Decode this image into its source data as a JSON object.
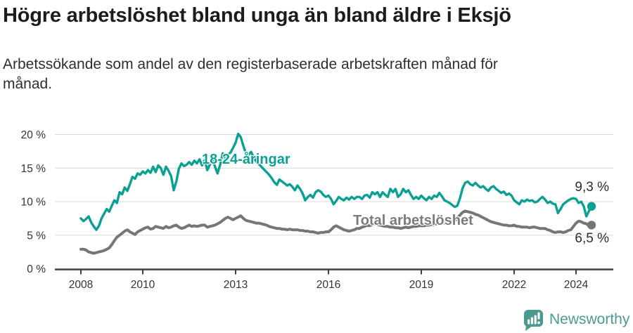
{
  "header": {
    "title": "Högre arbetslöshet bland unga än bland äldre i Eksjö",
    "subtitle_line1": "Arbetssökande som andel av den registerbaserade arbetskraften månad för",
    "subtitle_line2": "månad."
  },
  "colors": {
    "youth": "#0ba093",
    "total": "#767676",
    "total_label": "#7b7b7b",
    "axis": "#3f3f3f",
    "grid": "#d9d9d9",
    "tick_text": "#333333",
    "value_text": "#2c2c2c",
    "brand": "#4b9a91"
  },
  "footer": {
    "brand": "Newsworthy"
  },
  "chart_data": {
    "type": "line",
    "title": "Högre arbetslöshet bland unga än bland äldre i Eksjö",
    "subtitle": "Arbetssökande som andel av den registerbaserade arbetskraften månad för månad.",
    "xlabel": "",
    "ylabel": "",
    "unit": "%",
    "x_start": "2008-01",
    "x_end": "2024-07",
    "points_per_year": 12,
    "ylim": [
      0,
      20
    ],
    "grid": true,
    "legend_position": "inline-labels",
    "y_ticks": [
      {
        "value": 0,
        "label": "0 %"
      },
      {
        "value": 5,
        "label": "5 %"
      },
      {
        "value": 10,
        "label": "10 %"
      },
      {
        "value": 15,
        "label": "15 %"
      },
      {
        "value": 20,
        "label": "20 %"
      }
    ],
    "x_ticks": [
      {
        "year": 2008,
        "label": "2008"
      },
      {
        "year": 2010,
        "label": "2010"
      },
      {
        "year": 2013,
        "label": "2013"
      },
      {
        "year": 2016,
        "label": "2016"
      },
      {
        "year": 2019,
        "label": "2019"
      },
      {
        "year": 2022,
        "label": "2022"
      },
      {
        "year": 2024,
        "label": "2024"
      }
    ],
    "series": [
      {
        "name": "18-24-åringar",
        "color": "#0ba093",
        "end_value": 9.3,
        "end_label": "9,3 %",
        "values": [
          7.5,
          7.1,
          7.4,
          7.8,
          6.9,
          6.3,
          5.8,
          6.4,
          7.5,
          8.2,
          8.9,
          8.5,
          9.4,
          10.2,
          9.8,
          11.4,
          11.1,
          12.1,
          11.6,
          12.6,
          13.7,
          13.4,
          14.2,
          14.0,
          14.5,
          14.2,
          14.7,
          14.3,
          15.2,
          14.4,
          15.4,
          15.0,
          14.0,
          15.2,
          14.6,
          13.8,
          11.7,
          13.0,
          14.9,
          15.7,
          15.3,
          15.5,
          15.9,
          15.5,
          16.1,
          15.7,
          16.3,
          15.4,
          16.2,
          14.7,
          15.5,
          16.5,
          15.2,
          14.2,
          15.5,
          17.2,
          16.5,
          17.0,
          17.3,
          18.0,
          18.8,
          20.1,
          19.6,
          18.3,
          17.2,
          17.0,
          17.4,
          16.6,
          16.0,
          15.6,
          15.2,
          14.8,
          14.4,
          14.0,
          13.5,
          12.9,
          12.5,
          13.3,
          13.0,
          12.7,
          12.4,
          12.6,
          12.2,
          11.7,
          12.4,
          11.9,
          11.2,
          10.2,
          10.7,
          11.0,
          10.6,
          11.4,
          11.7,
          11.5,
          11.0,
          10.7,
          10.9,
          10.4,
          9.6,
          10.1,
          10.7,
          10.4,
          10.2,
          10.6,
          10.3,
          10.7,
          10.4,
          10.7,
          10.7,
          10.4,
          10.9,
          11.0,
          10.6,
          11.4,
          11.1,
          11.4,
          10.7,
          11.4,
          11.0,
          10.7,
          11.9,
          11.4,
          11.9,
          10.7,
          11.1,
          11.9,
          11.4,
          11.7,
          11.0,
          10.4,
          10.7,
          10.4,
          10.9,
          10.5,
          10.2,
          10.7,
          10.4,
          10.9,
          10.7,
          11.3,
          10.8,
          10.2,
          10.0,
          9.8,
          9.5,
          9.2,
          9.4,
          10.5,
          12.0,
          12.8,
          13.0,
          12.6,
          12.4,
          12.8,
          12.4,
          12.1,
          12.3,
          11.9,
          11.6,
          12.1,
          12.3,
          11.9,
          11.6,
          11.3,
          11.5,
          11.0,
          11.2,
          10.9,
          10.2,
          9.9,
          9.6,
          10.2,
          10.0,
          10.3,
          10.1,
          10.2,
          9.9,
          10.0,
          10.4,
          10.7,
          10.3,
          9.8,
          10.0,
          9.7,
          9.6,
          8.3,
          8.9,
          9.6,
          9.9,
          10.2,
          10.4,
          10.5,
          10.4,
          9.8,
          10.0,
          9.3,
          7.8,
          8.6,
          9.3
        ]
      },
      {
        "name": "Total arbetslöshet",
        "color": "#767676",
        "end_value": 6.5,
        "end_label": "6,5 %",
        "values": [
          2.9,
          2.9,
          2.8,
          2.5,
          2.4,
          2.3,
          2.4,
          2.5,
          2.6,
          2.7,
          2.9,
          3.1,
          3.6,
          4.2,
          4.7,
          5.0,
          5.3,
          5.6,
          5.8,
          5.5,
          5.3,
          5.1,
          5.5,
          5.7,
          5.9,
          6.1,
          6.2,
          5.9,
          6.0,
          6.3,
          6.2,
          6.1,
          6.0,
          6.3,
          6.1,
          6.2,
          6.4,
          6.5,
          6.2,
          6.0,
          6.1,
          6.3,
          6.5,
          6.3,
          6.4,
          6.3,
          6.4,
          6.5,
          6.5,
          6.2,
          6.3,
          6.4,
          6.5,
          6.7,
          6.9,
          7.2,
          7.5,
          7.7,
          7.5,
          7.3,
          7.5,
          7.7,
          7.9,
          7.5,
          7.2,
          7.1,
          7.0,
          6.9,
          6.8,
          6.8,
          6.7,
          6.6,
          6.5,
          6.3,
          6.2,
          6.1,
          6.0,
          6.0,
          5.9,
          5.9,
          5.8,
          5.9,
          5.8,
          5.8,
          5.8,
          5.7,
          5.7,
          5.6,
          5.6,
          5.5,
          5.5,
          5.4,
          5.3,
          5.4,
          5.4,
          5.5,
          5.5,
          5.8,
          6.2,
          6.4,
          6.2,
          6.0,
          5.8,
          5.7,
          5.6,
          5.7,
          5.8,
          6.0,
          6.0,
          6.2,
          6.3,
          6.5,
          6.4,
          6.6,
          6.7,
          6.6,
          6.5,
          6.4,
          6.3,
          6.3,
          6.2,
          6.2,
          6.1,
          6.1,
          6.0,
          6.1,
          6.2,
          6.1,
          6.2,
          6.3,
          6.3,
          6.4,
          6.4,
          6.4,
          6.5,
          6.5,
          6.6,
          6.6,
          6.7,
          6.7,
          6.8,
          6.8,
          6.9,
          7.0,
          7.0,
          7.2,
          7.5,
          8.0,
          8.4,
          8.6,
          8.5,
          8.4,
          8.3,
          8.1,
          8.0,
          7.8,
          7.6,
          7.4,
          7.2,
          7.0,
          6.9,
          6.8,
          6.7,
          6.6,
          6.5,
          6.5,
          6.4,
          6.4,
          6.5,
          6.3,
          6.3,
          6.2,
          6.2,
          6.2,
          6.1,
          6.2,
          6.2,
          6.1,
          6.0,
          6.0,
          6.0,
          5.8,
          5.7,
          5.5,
          5.4,
          5.5,
          5.5,
          5.4,
          5.5,
          5.7,
          5.8,
          6.3,
          6.8,
          7.1,
          7.0,
          6.8,
          6.7,
          6.4,
          6.5
        ]
      }
    ]
  }
}
